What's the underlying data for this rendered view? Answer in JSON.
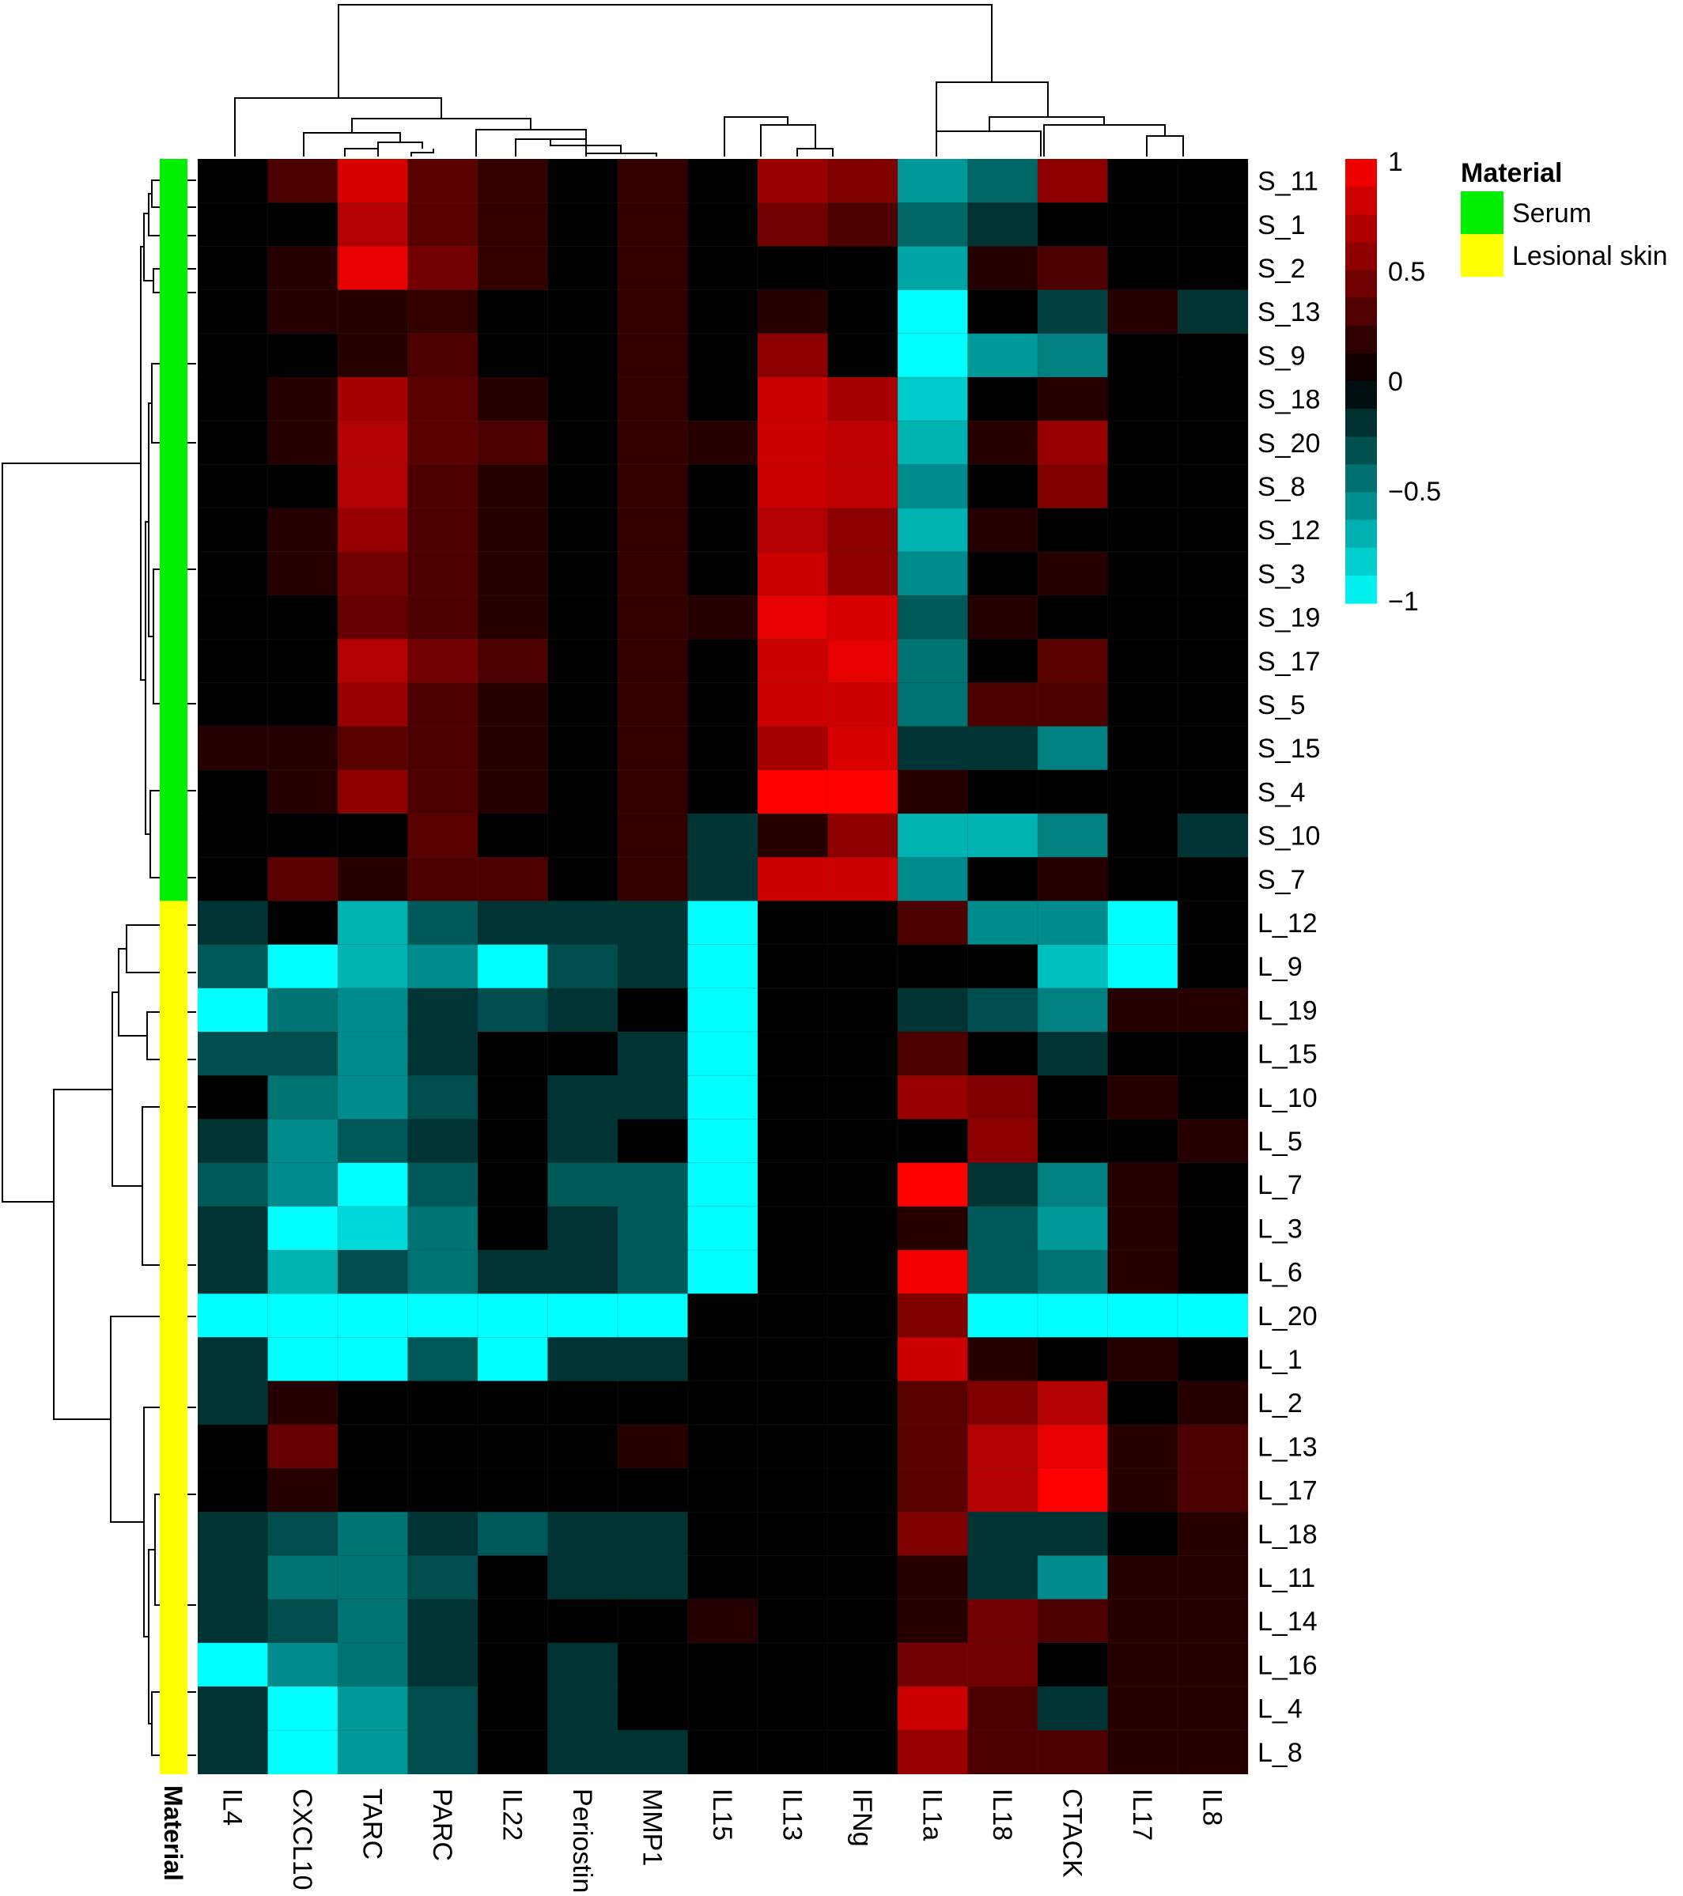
{
  "chart_data": {
    "type": "heatmap",
    "title": "",
    "columns": [
      "IL4",
      "CXCL10",
      "TARC",
      "PARC",
      "IL22",
      "Periostin",
      "MMP1",
      "IL15",
      "IL13",
      "IFNg",
      "IL1a",
      "IL18",
      "CTACK",
      "IL17",
      "IL8"
    ],
    "rows": [
      "S_11",
      "S_1",
      "S_2",
      "S_13",
      "S_9",
      "S_18",
      "S_20",
      "S_8",
      "S_12",
      "S_3",
      "S_19",
      "S_17",
      "S_5",
      "S_15",
      "S_4",
      "S_10",
      "S_7",
      "L_12",
      "L_9",
      "L_19",
      "L_15",
      "L_10",
      "L_5",
      "L_7",
      "L_3",
      "L_6",
      "L_20",
      "L_1",
      "L_2",
      "L_13",
      "L_17",
      "L_18",
      "L_11",
      "L_14",
      "L_16",
      "L_4",
      "L_8"
    ],
    "row_material": [
      "Serum",
      "Serum",
      "Serum",
      "Serum",
      "Serum",
      "Serum",
      "Serum",
      "Serum",
      "Serum",
      "Serum",
      "Serum",
      "Serum",
      "Serum",
      "Serum",
      "Serum",
      "Serum",
      "Serum",
      "Lesional skin",
      "Lesional skin",
      "Lesional skin",
      "Lesional skin",
      "Lesional skin",
      "Lesional skin",
      "Lesional skin",
      "Lesional skin",
      "Lesional skin",
      "Lesional skin",
      "Lesional skin",
      "Lesional skin",
      "Lesional skin",
      "Lesional skin",
      "Lesional skin",
      "Lesional skin",
      "Lesional skin",
      "Lesional skin",
      "Lesional skin",
      "Lesional skin"
    ],
    "values": [
      [
        0.0,
        0.3,
        0.85,
        0.35,
        0.2,
        0.0,
        0.2,
        0.0,
        0.6,
        0.5,
        -0.6,
        -0.4,
        0.55,
        0.0,
        0.0
      ],
      [
        0.0,
        0.0,
        0.7,
        0.35,
        0.2,
        0.0,
        0.2,
        0.0,
        0.45,
        0.3,
        -0.4,
        -0.2,
        0.0,
        0.0,
        0.0
      ],
      [
        0.0,
        0.15,
        0.9,
        0.45,
        0.2,
        0.0,
        0.2,
        0.0,
        0.0,
        0.0,
        -0.65,
        0.15,
        0.3,
        0.0,
        0.0
      ],
      [
        0.0,
        0.15,
        0.15,
        0.2,
        0.0,
        0.0,
        0.2,
        0.0,
        0.15,
        0.0,
        -1.0,
        0.0,
        -0.25,
        0.15,
        -0.2
      ],
      [
        0.0,
        0.0,
        0.15,
        0.3,
        0.0,
        0.0,
        0.2,
        0.0,
        0.55,
        0.0,
        -1.0,
        -0.6,
        -0.5,
        0.0,
        0.0
      ],
      [
        0.0,
        0.15,
        0.65,
        0.35,
        0.15,
        0.0,
        0.2,
        0.0,
        0.8,
        0.65,
        -0.8,
        0.0,
        0.15,
        0.0,
        0.0
      ],
      [
        0.0,
        0.15,
        0.7,
        0.35,
        0.3,
        0.0,
        0.2,
        0.15,
        0.8,
        0.75,
        -0.7,
        0.15,
        0.6,
        0.0,
        0.0
      ],
      [
        0.0,
        0.0,
        0.7,
        0.3,
        0.15,
        0.0,
        0.2,
        0.0,
        0.8,
        0.75,
        -0.55,
        0.0,
        0.5,
        0.0,
        0.0
      ],
      [
        0.0,
        0.15,
        0.6,
        0.3,
        0.15,
        0.0,
        0.2,
        0.0,
        0.7,
        0.55,
        -0.7,
        0.15,
        0.0,
        0.0,
        0.0
      ],
      [
        0.0,
        0.15,
        0.45,
        0.3,
        0.15,
        0.0,
        0.2,
        0.0,
        0.8,
        0.55,
        -0.55,
        0.0,
        0.15,
        0.0,
        0.0
      ],
      [
        0.0,
        0.0,
        0.4,
        0.3,
        0.15,
        0.0,
        0.2,
        0.15,
        0.9,
        0.85,
        -0.35,
        0.15,
        0.0,
        0.0,
        0.0
      ],
      [
        0.0,
        0.0,
        0.7,
        0.45,
        0.3,
        0.0,
        0.2,
        0.0,
        0.8,
        0.9,
        -0.45,
        0.0,
        0.35,
        0.0,
        0.0
      ],
      [
        0.0,
        0.0,
        0.6,
        0.3,
        0.15,
        0.0,
        0.2,
        0.0,
        0.8,
        0.8,
        -0.45,
        0.3,
        0.3,
        0.0,
        0.0
      ],
      [
        0.15,
        0.15,
        0.35,
        0.3,
        0.15,
        0.0,
        0.2,
        0.0,
        0.65,
        0.85,
        -0.2,
        -0.2,
        -0.5,
        0.0,
        0.0
      ],
      [
        0.0,
        0.15,
        0.55,
        0.3,
        0.15,
        0.0,
        0.2,
        0.0,
        1.0,
        1.0,
        0.15,
        0.0,
        0.0,
        0.0,
        0.0
      ],
      [
        0.0,
        0.0,
        0.0,
        0.35,
        0.0,
        0.0,
        0.2,
        -0.2,
        0.15,
        0.55,
        -0.7,
        -0.7,
        -0.5,
        0.0,
        -0.2
      ],
      [
        0.0,
        0.35,
        0.15,
        0.3,
        0.3,
        0.0,
        0.2,
        -0.2,
        0.8,
        0.8,
        -0.55,
        0.0,
        0.15,
        0.0,
        0.0
      ],
      [
        -0.2,
        0.0,
        -0.7,
        -0.35,
        -0.2,
        -0.2,
        -0.2,
        -1.0,
        0.0,
        0.0,
        0.3,
        -0.55,
        -0.55,
        -1.0,
        0.0
      ],
      [
        -0.35,
        -1.0,
        -0.7,
        -0.55,
        -1.0,
        -0.3,
        -0.2,
        -1.0,
        0.0,
        0.0,
        0.0,
        0.0,
        -0.75,
        -1.0,
        0.0
      ],
      [
        -1.0,
        -0.45,
        -0.55,
        -0.2,
        -0.3,
        -0.2,
        0.0,
        -1.0,
        0.0,
        0.0,
        -0.2,
        -0.3,
        -0.5,
        0.15,
        0.15
      ],
      [
        -0.3,
        -0.3,
        -0.55,
        -0.2,
        0.0,
        0.0,
        -0.2,
        -1.0,
        0.0,
        0.0,
        0.3,
        0.0,
        -0.2,
        0.0,
        0.0
      ],
      [
        0.0,
        -0.45,
        -0.55,
        -0.3,
        0.0,
        -0.2,
        -0.2,
        -1.0,
        0.0,
        0.0,
        0.6,
        0.5,
        0.0,
        0.15,
        0.0
      ],
      [
        -0.2,
        -0.55,
        -0.35,
        -0.2,
        0.0,
        -0.2,
        0.0,
        -1.0,
        0.0,
        0.0,
        0.0,
        0.55,
        0.0,
        0.0,
        0.15
      ],
      [
        -0.35,
        -0.55,
        -1.0,
        -0.35,
        0.0,
        -0.35,
        -0.35,
        -1.0,
        0.0,
        0.0,
        1.0,
        -0.2,
        -0.5,
        0.15,
        0.0
      ],
      [
        -0.2,
        -1.0,
        -0.85,
        -0.45,
        0.0,
        -0.2,
        -0.35,
        -1.0,
        0.0,
        0.0,
        0.15,
        -0.35,
        -0.6,
        0.15,
        0.0
      ],
      [
        -0.2,
        -0.7,
        -0.3,
        -0.45,
        -0.2,
        -0.2,
        -0.35,
        -1.0,
        0.0,
        0.0,
        0.95,
        -0.35,
        -0.45,
        0.15,
        0.0
      ],
      [
        -1.0,
        -1.0,
        -1.0,
        -1.0,
        -1.0,
        -1.0,
        -1.0,
        0.0,
        0.0,
        0.0,
        0.5,
        -1.0,
        -1.0,
        -1.0,
        -1.0
      ],
      [
        -0.2,
        -1.0,
        -1.0,
        -0.35,
        -1.0,
        -0.2,
        -0.2,
        0.0,
        0.0,
        0.0,
        0.8,
        0.15,
        0.0,
        0.15,
        0.0
      ],
      [
        -0.2,
        0.15,
        0.0,
        0.0,
        0.0,
        0.0,
        0.0,
        0.0,
        0.0,
        0.0,
        0.35,
        0.5,
        0.7,
        0.0,
        0.15
      ],
      [
        0.0,
        0.4,
        0.0,
        0.0,
        0.0,
        0.0,
        0.15,
        0.0,
        0.0,
        0.0,
        0.35,
        0.7,
        0.9,
        0.15,
        0.3
      ],
      [
        0.0,
        0.15,
        0.0,
        0.0,
        0.0,
        0.0,
        0.0,
        0.0,
        0.0,
        0.0,
        0.35,
        0.7,
        1.0,
        0.15,
        0.3
      ],
      [
        -0.2,
        -0.3,
        -0.45,
        -0.2,
        -0.35,
        -0.2,
        -0.2,
        0.0,
        0.0,
        0.0,
        0.5,
        -0.2,
        -0.2,
        0.0,
        0.15
      ],
      [
        -0.2,
        -0.45,
        -0.45,
        -0.3,
        0.0,
        -0.2,
        -0.2,
        0.0,
        0.0,
        0.0,
        0.15,
        -0.2,
        -0.55,
        0.15,
        0.15
      ],
      [
        -0.2,
        -0.3,
        -0.45,
        -0.2,
        0.0,
        0.0,
        0.0,
        0.15,
        0.0,
        0.0,
        0.15,
        0.45,
        0.3,
        0.15,
        0.15
      ],
      [
        -1.0,
        -0.55,
        -0.45,
        -0.2,
        0.0,
        -0.2,
        0.0,
        0.0,
        0.0,
        0.0,
        0.45,
        0.45,
        0.0,
        0.15,
        0.15
      ],
      [
        -0.2,
        -1.0,
        -0.6,
        -0.3,
        0.0,
        -0.2,
        0.0,
        0.0,
        0.0,
        0.0,
        0.8,
        0.3,
        -0.2,
        0.15,
        0.15
      ],
      [
        -0.2,
        -1.0,
        -0.6,
        -0.3,
        0.0,
        -0.2,
        -0.2,
        0.0,
        0.0,
        0.0,
        0.6,
        0.3,
        0.3,
        0.15,
        0.15
      ]
    ],
    "zlim": [
      -1,
      1
    ],
    "colorscale": {
      "low": "#00ffff",
      "mid": "#000000",
      "high": "#ff0000"
    },
    "colorbar_ticks": [
      "1",
      "0.5",
      "0",
      "−0.5",
      "−1"
    ],
    "annotation_label": "Material",
    "legend": {
      "title": "Material",
      "items": [
        {
          "label": "Serum",
          "color": "#00ee00"
        },
        {
          "label": "Lesional skin",
          "color": "#ffff00"
        }
      ]
    }
  }
}
